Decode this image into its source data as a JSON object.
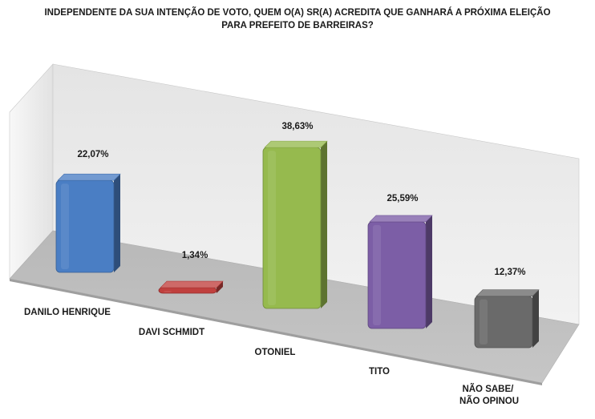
{
  "chart_data": {
    "type": "bar",
    "title_line1": "INDEPENDENTE DA SUA INTENÇÃO DE VOTO, QUEM O(A) SR(A) ACREDITA QUE GANHARÁ A PRÓXIMA ELEIÇÃO",
    "title_line2": "PARA PREFEITO DE BARREIRAS?",
    "categories": [
      "DANILO HENRIQUE",
      "DAVI SCHMIDT",
      "OTONIEL",
      "TITO",
      "NÃO SABE/NÃO OPINOU"
    ],
    "values": [
      22.07,
      1.34,
      38.63,
      25.59,
      12.37
    ],
    "value_labels": [
      "22,07%",
      "1,34%",
      "38,63%",
      "25,59%",
      "12,37%"
    ],
    "colors": [
      "#4a7ec4",
      "#c0403e",
      "#96ba4e",
      "#7c5ea6",
      "#6a6a6a"
    ],
    "unit": "%",
    "grid": false,
    "legend": "none",
    "style": "3d"
  }
}
